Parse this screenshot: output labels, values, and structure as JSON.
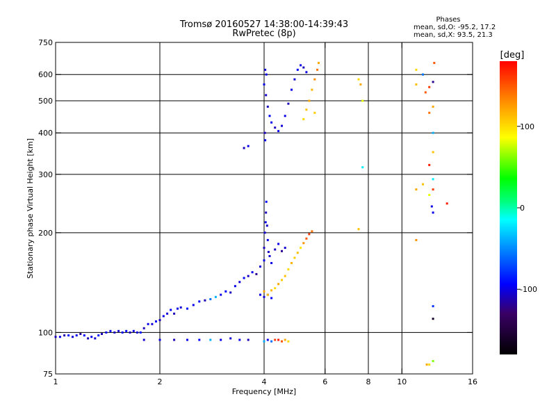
{
  "chart_data": {
    "type": "scatter",
    "title": "Tromsø 20160527 14:38:00-14:39:43",
    "subtitle": "RwPretec (8p)",
    "xlabel": "Frequency [MHz]",
    "ylabel": "Stationary phase Virtual Height [km]",
    "x_scale": "log",
    "y_scale": "log",
    "xlim": [
      1,
      16
    ],
    "ylim": [
      75,
      750
    ],
    "x_ticks": [
      1,
      2,
      4,
      6,
      8,
      10,
      16
    ],
    "y_ticks": [
      75,
      100,
      200,
      300,
      400,
      500,
      600,
      750
    ],
    "x_gridlines": [
      2,
      4,
      6,
      8,
      10
    ],
    "y_gridlines": [
      100,
      200,
      300,
      400,
      500,
      600
    ],
    "grid": true,
    "phases_box": {
      "title": "Phases",
      "line1": "mean, sd,O: -95.2, 17.2",
      "line2": "mean, sd,X:  93.5, 21.3"
    },
    "colorbar": {
      "label": "[deg]",
      "ticks": [
        100,
        0,
        -100
      ],
      "range": [
        -180,
        180
      ],
      "placement": "right"
    },
    "series": [
      {
        "points": [
          [
            1.0,
            97,
            -110
          ],
          [
            1.03,
            97,
            -100
          ],
          [
            1.06,
            98,
            -115
          ],
          [
            1.09,
            98,
            -90
          ],
          [
            1.12,
            97,
            -105
          ],
          [
            1.15,
            98,
            -100
          ],
          [
            1.18,
            99,
            -120
          ],
          [
            1.21,
            98,
            -95
          ],
          [
            1.24,
            96,
            -110
          ],
          [
            1.27,
            97,
            -100
          ],
          [
            1.3,
            96,
            -105
          ],
          [
            1.33,
            98,
            -90
          ],
          [
            1.36,
            99,
            -110
          ],
          [
            1.4,
            100,
            -100
          ],
          [
            1.44,
            101,
            -95
          ],
          [
            1.48,
            100,
            -110
          ],
          [
            1.52,
            101,
            -105
          ],
          [
            1.56,
            100,
            -100
          ],
          [
            1.6,
            101,
            -95
          ],
          [
            1.64,
            100,
            -110
          ],
          [
            1.68,
            101,
            -100
          ],
          [
            1.72,
            100,
            -105
          ],
          [
            1.76,
            100,
            -90
          ],
          [
            1.8,
            103,
            -110
          ],
          [
            1.85,
            106,
            -100
          ],
          [
            1.9,
            106,
            -105
          ],
          [
            1.95,
            108,
            -95
          ],
          [
            2.0,
            109,
            -110
          ],
          [
            2.05,
            112,
            -100
          ],
          [
            2.1,
            114,
            -105
          ],
          [
            2.15,
            117,
            -95
          ],
          [
            2.2,
            114,
            -110
          ],
          [
            2.25,
            118,
            -100
          ],
          [
            2.3,
            119,
            -105
          ],
          [
            2.4,
            118,
            -90
          ],
          [
            2.5,
            121,
            -100
          ],
          [
            2.6,
            124,
            -95
          ],
          [
            2.7,
            125,
            -110
          ],
          [
            2.8,
            126,
            -60
          ],
          [
            2.9,
            128,
            -40
          ],
          [
            3.0,
            130,
            -100
          ],
          [
            3.1,
            133,
            -95
          ],
          [
            3.2,
            132,
            -110
          ],
          [
            3.3,
            138,
            -100
          ],
          [
            3.4,
            142,
            -105
          ],
          [
            3.5,
            146,
            -95
          ],
          [
            3.6,
            148,
            -110
          ],
          [
            3.7,
            152,
            -100
          ],
          [
            3.8,
            150,
            -120
          ],
          [
            3.9,
            158,
            -105
          ],
          [
            4.0,
            165,
            -100
          ],
          [
            4.0,
            180,
            -110
          ],
          [
            4.02,
            200,
            -105
          ],
          [
            4.04,
            215,
            -100
          ],
          [
            4.05,
            230,
            -110
          ],
          [
            4.06,
            248,
            -95
          ],
          [
            4.08,
            210,
            -105
          ],
          [
            4.1,
            190,
            -100
          ],
          [
            4.12,
            175,
            -110
          ],
          [
            4.15,
            170,
            -105
          ],
          [
            4.2,
            162,
            -100
          ],
          [
            4.3,
            178,
            -110
          ],
          [
            4.4,
            185,
            -100
          ],
          [
            4.5,
            176,
            -120
          ],
          [
            4.6,
            180,
            -105
          ],
          [
            3.9,
            130,
            -100
          ],
          [
            4.0,
            128,
            -105
          ],
          [
            4.1,
            130,
            -110
          ],
          [
            4.2,
            127,
            -95
          ],
          [
            4.0,
            133,
            120
          ],
          [
            4.1,
            130,
            110
          ],
          [
            4.2,
            134,
            115
          ],
          [
            4.3,
            136,
            100
          ],
          [
            4.4,
            140,
            120
          ],
          [
            4.5,
            144,
            105
          ],
          [
            4.6,
            148,
            110
          ],
          [
            4.7,
            155,
            100
          ],
          [
            4.8,
            162,
            115
          ],
          [
            4.9,
            168,
            105
          ],
          [
            5.0,
            174,
            110
          ],
          [
            5.1,
            180,
            95
          ],
          [
            5.2,
            186,
            130
          ],
          [
            5.3,
            192,
            150
          ],
          [
            5.4,
            198,
            160
          ],
          [
            5.5,
            202,
            140
          ],
          [
            1.8,
            95,
            -105
          ],
          [
            2.0,
            95,
            -100
          ],
          [
            2.2,
            95,
            -110
          ],
          [
            2.4,
            95,
            -100
          ],
          [
            2.6,
            95,
            -95
          ],
          [
            2.8,
            95,
            -40
          ],
          [
            3.0,
            95,
            -100
          ],
          [
            3.2,
            96,
            -105
          ],
          [
            3.4,
            95,
            -100
          ],
          [
            3.6,
            95,
            -110
          ],
          [
            4.0,
            94,
            -40
          ],
          [
            4.1,
            95,
            -100
          ],
          [
            4.2,
            94,
            -60
          ],
          [
            4.3,
            95,
            160
          ],
          [
            4.4,
            95,
            170
          ],
          [
            4.5,
            94,
            150
          ],
          [
            4.6,
            95,
            120
          ],
          [
            4.7,
            94,
            100
          ],
          [
            3.5,
            360,
            -110
          ],
          [
            3.6,
            365,
            -100
          ],
          [
            4.0,
            560,
            -100
          ],
          [
            4.05,
            520,
            -105
          ],
          [
            4.1,
            480,
            -110
          ],
          [
            4.15,
            450,
            -95
          ],
          [
            4.2,
            430,
            -100
          ],
          [
            4.3,
            415,
            -110
          ],
          [
            4.4,
            405,
            -100
          ],
          [
            4.5,
            420,
            -105
          ],
          [
            4.6,
            450,
            -100
          ],
          [
            4.7,
            490,
            -110
          ],
          [
            4.8,
            540,
            -100
          ],
          [
            4.9,
            580,
            -105
          ],
          [
            5.0,
            620,
            -95
          ],
          [
            5.1,
            640,
            -100
          ],
          [
            5.2,
            630,
            -110
          ],
          [
            5.3,
            610,
            -100
          ],
          [
            4.03,
            620,
            -105
          ],
          [
            4.06,
            600,
            -100
          ],
          [
            4.02,
            400,
            -110
          ],
          [
            4.03,
            380,
            -100
          ],
          [
            5.2,
            440,
            100
          ],
          [
            5.3,
            470,
            110
          ],
          [
            5.4,
            500,
            120
          ],
          [
            5.5,
            540,
            115
          ],
          [
            5.6,
            580,
            130
          ],
          [
            5.7,
            620,
            140
          ],
          [
            5.75,
            650,
            120
          ],
          [
            5.6,
            460,
            105
          ],
          [
            7.5,
            580,
            100
          ],
          [
            7.6,
            560,
            120
          ],
          [
            7.7,
            500,
            80
          ],
          [
            7.7,
            315,
            -20
          ],
          [
            7.5,
            205,
            110
          ],
          [
            11.0,
            620,
            100
          ],
          [
            11.0,
            560,
            110
          ],
          [
            11.0,
            270,
            120
          ],
          [
            11.0,
            190,
            130
          ],
          [
            11.5,
            600,
            -60
          ],
          [
            11.5,
            280,
            110
          ],
          [
            11.7,
            530,
            150
          ],
          [
            12.0,
            550,
            160
          ],
          [
            12.0,
            460,
            140
          ],
          [
            12.0,
            320,
            170
          ],
          [
            12.0,
            260,
            80
          ],
          [
            12.0,
            80,
            100
          ],
          [
            12.2,
            240,
            -100
          ],
          [
            12.3,
            570,
            -120
          ],
          [
            12.3,
            480,
            120
          ],
          [
            12.3,
            400,
            -40
          ],
          [
            12.3,
            350,
            110
          ],
          [
            12.3,
            290,
            -20
          ],
          [
            12.3,
            270,
            160
          ],
          [
            12.3,
            230,
            -100
          ],
          [
            12.3,
            120,
            -80
          ],
          [
            12.3,
            110,
            -160
          ],
          [
            12.3,
            82,
            60
          ],
          [
            12.4,
            650,
            150
          ],
          [
            13.5,
            245,
            170
          ],
          [
            11.8,
            80,
            120
          ]
        ]
      }
    ]
  }
}
